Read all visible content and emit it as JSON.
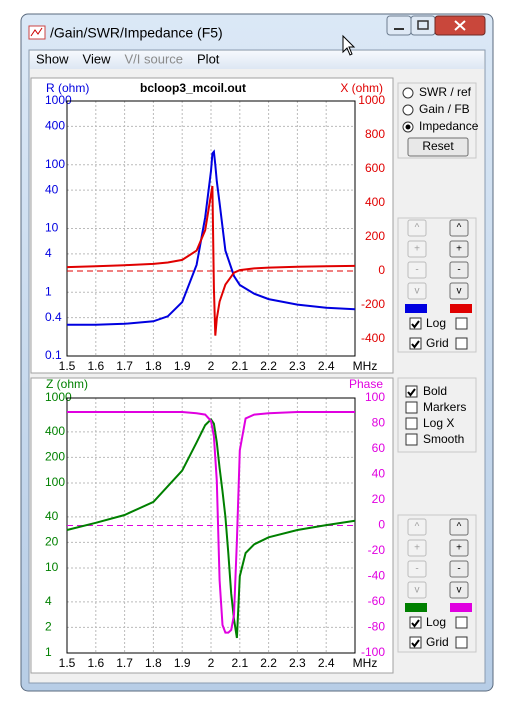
{
  "window": {
    "title": "/Gain/SWR/Impedance (F5)"
  },
  "menu": [
    "Show",
    "View",
    "V/I source",
    "Plot"
  ],
  "view_options": {
    "options": [
      "SWR / ref",
      "Gain / FB",
      "Impedance"
    ],
    "selected": 2,
    "reset": "Reset"
  },
  "plot_options": [
    {
      "label": "Bold",
      "checked": true
    },
    {
      "label": "Markers",
      "checked": false
    },
    {
      "label": "Log X",
      "checked": false
    },
    {
      "label": "Smooth",
      "checked": false
    }
  ],
  "top_controls": {
    "buttons": [
      "^",
      "+",
      "-",
      "v"
    ],
    "checks": [
      {
        "label": "Log",
        "left": true,
        "right": false
      },
      {
        "label": "Grid",
        "left": true,
        "right": false
      }
    ]
  },
  "bottom_controls": {
    "buttons": [
      "^",
      "+",
      "-",
      "v"
    ],
    "checks": [
      {
        "label": "Log",
        "left": true,
        "right": false
      },
      {
        "label": "Grid",
        "left": true,
        "right": false
      }
    ]
  },
  "chart_data": [
    {
      "type": "line",
      "title": "bcloop3_mcoil.out",
      "ylabel": "R (ohm)",
      "y2label": "X (ohm)",
      "xlabel": "MHz",
      "x": [
        1.5,
        1.6,
        1.7,
        1.8,
        1.85,
        1.9,
        1.95,
        1.98,
        2.0,
        2.005,
        2.01,
        2.015,
        2.02,
        2.03,
        2.05,
        2.08,
        2.1,
        2.15,
        2.2,
        2.3,
        2.4,
        2.5
      ],
      "xlim": [
        1.5,
        2.5
      ],
      "xticks": [
        1.5,
        1.6,
        1.7,
        1.8,
        1.9,
        2,
        2.1,
        2.2,
        2.3,
        2.4
      ],
      "ylim": [
        0.1,
        1000
      ],
      "ylog": true,
      "yticks": [
        0.1,
        0.4,
        1,
        4,
        10,
        40,
        100,
        400,
        1000
      ],
      "y2lim": [
        -500,
        1000
      ],
      "y2ticks": [
        -400,
        -200,
        0,
        200,
        400,
        600,
        800,
        1000
      ],
      "y2_reference": 0,
      "grid": true,
      "series": [
        {
          "name": "R",
          "color": "#0000e0",
          "values": [
            0.31,
            0.31,
            0.32,
            0.35,
            0.42,
            0.7,
            2.7,
            15,
            80,
            150,
            160,
            100,
            55,
            25,
            4.5,
            1.8,
            1.3,
            0.95,
            0.78,
            0.64,
            0.57,
            0.54
          ]
        },
        {
          "name": "X",
          "color": "#e00000",
          "axis": "y2",
          "values": [
            23,
            28,
            34,
            42,
            50,
            65,
            120,
            240,
            450,
            500,
            -100,
            -380,
            -280,
            -180,
            -80,
            -10,
            5,
            15,
            20,
            25,
            28,
            30
          ]
        }
      ]
    },
    {
      "type": "line",
      "ylabel": "Z (ohm)",
      "y2label": "Phase",
      "xlabel": "MHz",
      "x": [
        1.5,
        1.6,
        1.7,
        1.8,
        1.9,
        1.95,
        1.98,
        2.0,
        2.01,
        2.02,
        2.03,
        2.04,
        2.05,
        2.06,
        2.07,
        2.08,
        2.09,
        2.1,
        2.12,
        2.15,
        2.2,
        2.3,
        2.4,
        2.5
      ],
      "xlim": [
        1.5,
        2.5
      ],
      "xticks": [
        1.5,
        1.6,
        1.7,
        1.8,
        1.9,
        2,
        2.1,
        2.2,
        2.3,
        2.4
      ],
      "ylim": [
        1,
        1000
      ],
      "ylog": true,
      "yticks": [
        1,
        2,
        4,
        10,
        20,
        40,
        100,
        200,
        400,
        1000
      ],
      "y2lim": [
        -100,
        100
      ],
      "y2ticks": [
        -100,
        -80,
        -60,
        -40,
        -20,
        0,
        20,
        40,
        60,
        80,
        100
      ],
      "y2_reference": 0,
      "grid": true,
      "series": [
        {
          "name": "Z",
          "color": "#008000",
          "values": [
            28,
            34,
            42,
            60,
            140,
            300,
            480,
            560,
            500,
            300,
            150,
            80,
            40,
            15,
            5,
            2.5,
            1.5,
            8,
            15,
            19,
            23,
            28,
            32,
            36
          ]
        },
        {
          "name": "Phase",
          "color": "#e000e0",
          "axis": "y2",
          "values": [
            89,
            89,
            89,
            89,
            89,
            88,
            87,
            82,
            70,
            35,
            -43,
            -78,
            -84,
            -84,
            -82,
            -70,
            -12,
            59,
            84,
            87,
            88,
            89,
            89,
            89
          ]
        }
      ]
    }
  ]
}
